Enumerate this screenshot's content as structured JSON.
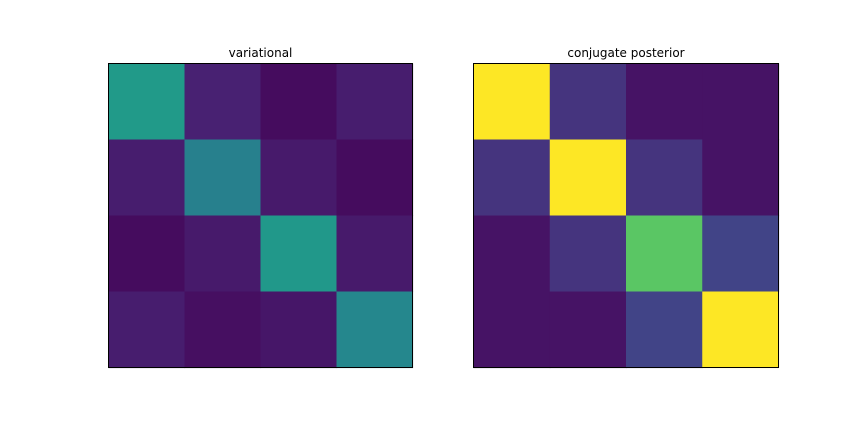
{
  "chart_data": [
    {
      "type": "heatmap",
      "title": "variational",
      "colormap": "viridis",
      "xaxis_visible": false,
      "yaxis_visible": false,
      "grid": false,
      "vmin": 0,
      "vmax": 1,
      "matrix": [
        [
          0.54,
          0.09,
          0.03,
          0.08
        ],
        [
          0.08,
          0.43,
          0.07,
          0.03
        ],
        [
          0.03,
          0.07,
          0.53,
          0.07
        ],
        [
          0.08,
          0.04,
          0.06,
          0.46
        ]
      ]
    },
    {
      "type": "heatmap",
      "title": "conjugate posterior",
      "colormap": "viridis",
      "xaxis_visible": false,
      "yaxis_visible": false,
      "grid": false,
      "vmin": 0,
      "vmax": 1,
      "matrix": [
        [
          1.0,
          0.15,
          0.05,
          0.05
        ],
        [
          0.15,
          1.0,
          0.15,
          0.05
        ],
        [
          0.05,
          0.15,
          0.74,
          0.2
        ],
        [
          0.05,
          0.05,
          0.2,
          1.0
        ]
      ]
    }
  ]
}
